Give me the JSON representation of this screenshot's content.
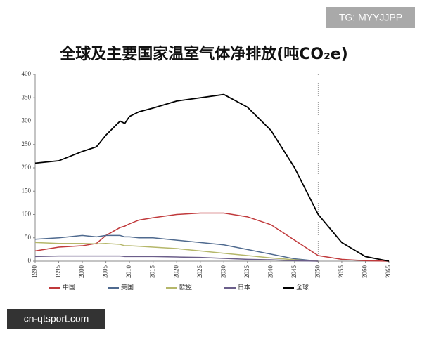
{
  "chart_data": {
    "type": "line",
    "title": "全球及主要国家温室气体净排放(吨CO₂e)",
    "watermarks": [
      "TG: MYYJJPP",
      "cn-qtsport.com"
    ],
    "x": [
      1990,
      1995,
      2000,
      2003,
      2005,
      2008,
      2009,
      2010,
      2012,
      2015,
      2020,
      2025,
      2030,
      2035,
      2040,
      2045,
      2050,
      2055,
      2060,
      2065
    ],
    "series": [
      {
        "name": "中国",
        "color": "#c0393b",
        "values": [
          22,
          30,
          33,
          38,
          55,
          72,
          75,
          80,
          88,
          93,
          100,
          103,
          103,
          95,
          78,
          45,
          12,
          4,
          1,
          0
        ]
      },
      {
        "name": "美国",
        "color": "#4f6a8f",
        "values": [
          47,
          50,
          55,
          52,
          55,
          55,
          52,
          52,
          50,
          50,
          45,
          40,
          35,
          25,
          15,
          5,
          0,
          null,
          null,
          null
        ]
      },
      {
        "name": "欧盟",
        "color": "#b5b76a",
        "values": [
          40,
          38,
          38,
          37,
          38,
          36,
          33,
          33,
          32,
          30,
          27,
          22,
          17,
          12,
          7,
          3,
          0,
          null,
          null,
          null
        ]
      },
      {
        "name": "日本",
        "color": "#6b5e8a",
        "values": [
          10,
          11,
          11,
          11,
          11,
          11,
          10,
          10,
          10,
          10,
          9,
          8,
          6,
          4,
          3,
          1,
          0,
          null,
          null,
          null
        ]
      },
      {
        "name": "全球",
        "color": "#000000",
        "values": [
          210,
          215,
          235,
          245,
          270,
          300,
          295,
          310,
          320,
          328,
          343,
          350,
          357,
          330,
          280,
          200,
          100,
          40,
          10,
          0
        ]
      }
    ],
    "xlim": [
      1990,
      2065
    ],
    "xticks": [
      1990,
      1995,
      2000,
      2005,
      2010,
      2015,
      2020,
      2025,
      2030,
      2035,
      2040,
      2045,
      2050,
      2055,
      2060,
      2065
    ],
    "ylim": [
      0,
      400
    ],
    "yticks": [
      0,
      50,
      100,
      150,
      200,
      250,
      300,
      350,
      400
    ],
    "reference_x": 2050,
    "grid": false,
    "legend": "bottom"
  }
}
